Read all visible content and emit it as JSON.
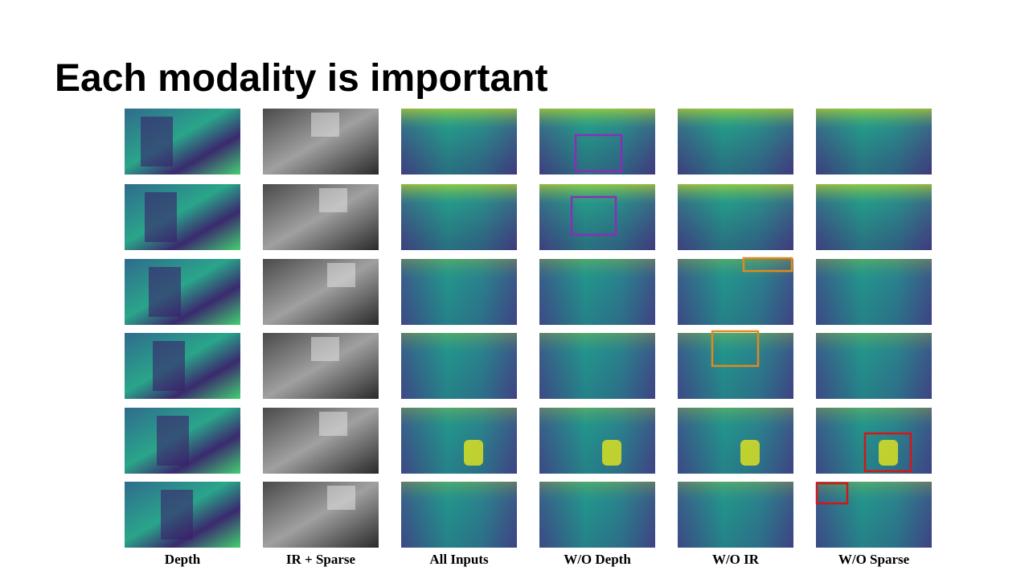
{
  "slide": {
    "title": "Each modality is important",
    "columns": [
      "Depth",
      "IR + Sparse",
      "All Inputs",
      "W/O Depth",
      "W/O IR",
      "W/O Sparse"
    ]
  }
}
